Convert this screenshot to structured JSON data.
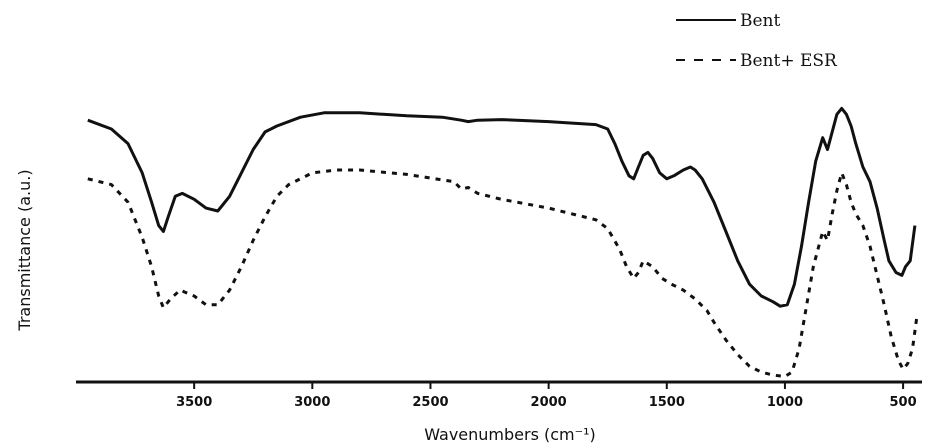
{
  "chart_data": {
    "type": "line",
    "xlabel": "Wavenumbers (cm⁻¹)",
    "ylabel": "Transmittance (a.u.)",
    "xlim": [
      4000,
      420
    ],
    "x_reversed": true,
    "ylim": [
      0,
      100
    ],
    "grid": false,
    "legend_position": "top-right",
    "x_ticks": [
      3500,
      3000,
      2500,
      2000,
      1500,
      1000,
      500
    ],
    "series": [
      {
        "name": "Bent",
        "style": "solid",
        "color": "#111111",
        "points": [
          [
            3950,
            88
          ],
          [
            3850,
            85
          ],
          [
            3780,
            80
          ],
          [
            3720,
            70
          ],
          [
            3680,
            60
          ],
          [
            3650,
            52
          ],
          [
            3630,
            50
          ],
          [
            3610,
            55
          ],
          [
            3580,
            62
          ],
          [
            3550,
            63
          ],
          [
            3500,
            61
          ],
          [
            3450,
            58
          ],
          [
            3400,
            57
          ],
          [
            3350,
            62
          ],
          [
            3300,
            70
          ],
          [
            3250,
            78
          ],
          [
            3200,
            84
          ],
          [
            3150,
            86
          ],
          [
            3050,
            89
          ],
          [
            2950,
            90.5
          ],
          [
            2800,
            90.5
          ],
          [
            2600,
            89.5
          ],
          [
            2450,
            89
          ],
          [
            2370,
            88
          ],
          [
            2340,
            87.5
          ],
          [
            2300,
            88
          ],
          [
            2200,
            88.2
          ],
          [
            2000,
            87.5
          ],
          [
            1800,
            86.5
          ],
          [
            1750,
            85
          ],
          [
            1720,
            80
          ],
          [
            1690,
            74
          ],
          [
            1660,
            69
          ],
          [
            1640,
            68
          ],
          [
            1620,
            72
          ],
          [
            1600,
            76
          ],
          [
            1580,
            77
          ],
          [
            1560,
            75
          ],
          [
            1530,
            70
          ],
          [
            1500,
            68
          ],
          [
            1470,
            69
          ],
          [
            1430,
            71
          ],
          [
            1400,
            72
          ],
          [
            1380,
            71
          ],
          [
            1350,
            68
          ],
          [
            1300,
            60
          ],
          [
            1250,
            50
          ],
          [
            1200,
            40
          ],
          [
            1150,
            32
          ],
          [
            1100,
            28
          ],
          [
            1050,
            26
          ],
          [
            1020,
            24.5
          ],
          [
            990,
            25
          ],
          [
            960,
            32
          ],
          [
            930,
            45
          ],
          [
            900,
            60
          ],
          [
            870,
            74
          ],
          [
            840,
            82
          ],
          [
            820,
            78
          ],
          [
            800,
            84
          ],
          [
            780,
            90
          ],
          [
            760,
            92
          ],
          [
            740,
            90
          ],
          [
            720,
            86
          ],
          [
            700,
            80
          ],
          [
            670,
            72
          ],
          [
            640,
            67
          ],
          [
            610,
            58
          ],
          [
            580,
            47
          ],
          [
            560,
            40
          ],
          [
            530,
            36
          ],
          [
            505,
            35
          ],
          [
            490,
            38
          ],
          [
            470,
            40
          ],
          [
            450,
            52
          ]
        ]
      },
      {
        "name": "Bent+ ESR",
        "style": "dashed",
        "color": "#111111",
        "points": [
          [
            3950,
            68
          ],
          [
            3850,
            66
          ],
          [
            3780,
            60
          ],
          [
            3720,
            48
          ],
          [
            3680,
            38
          ],
          [
            3650,
            28
          ],
          [
            3630,
            24
          ],
          [
            3600,
            27
          ],
          [
            3560,
            30
          ],
          [
            3500,
            28
          ],
          [
            3450,
            25
          ],
          [
            3400,
            25
          ],
          [
            3350,
            30
          ],
          [
            3300,
            38
          ],
          [
            3250,
            47
          ],
          [
            3200,
            55
          ],
          [
            3150,
            62
          ],
          [
            3100,
            66
          ],
          [
            3000,
            70
          ],
          [
            2900,
            71
          ],
          [
            2800,
            71
          ],
          [
            2600,
            69.5
          ],
          [
            2400,
            67
          ],
          [
            2370,
            64.5
          ],
          [
            2340,
            65
          ],
          [
            2300,
            63
          ],
          [
            2200,
            61
          ],
          [
            2000,
            58
          ],
          [
            1800,
            54
          ],
          [
            1750,
            51
          ],
          [
            1700,
            44
          ],
          [
            1670,
            38
          ],
          [
            1640,
            34
          ],
          [
            1620,
            36
          ],
          [
            1600,
            40
          ],
          [
            1560,
            38
          ],
          [
            1520,
            34
          ],
          [
            1480,
            32
          ],
          [
            1430,
            30
          ],
          [
            1380,
            27
          ],
          [
            1330,
            23
          ],
          [
            1300,
            19
          ],
          [
            1250,
            13
          ],
          [
            1200,
            8
          ],
          [
            1150,
            4
          ],
          [
            1100,
            2
          ],
          [
            1050,
            1
          ],
          [
            1000,
            0.5
          ],
          [
            970,
            2
          ],
          [
            940,
            10
          ],
          [
            910,
            24
          ],
          [
            880,
            38
          ],
          [
            860,
            44
          ],
          [
            840,
            50
          ],
          [
            820,
            47
          ],
          [
            800,
            56
          ],
          [
            780,
            64
          ],
          [
            760,
            70
          ],
          [
            740,
            66
          ],
          [
            720,
            60
          ],
          [
            700,
            56
          ],
          [
            670,
            52
          ],
          [
            640,
            45
          ],
          [
            610,
            35
          ],
          [
            580,
            25
          ],
          [
            550,
            14
          ],
          [
            520,
            6
          ],
          [
            500,
            3
          ],
          [
            480,
            5
          ],
          [
            460,
            10
          ],
          [
            440,
            22
          ]
        ]
      }
    ]
  }
}
